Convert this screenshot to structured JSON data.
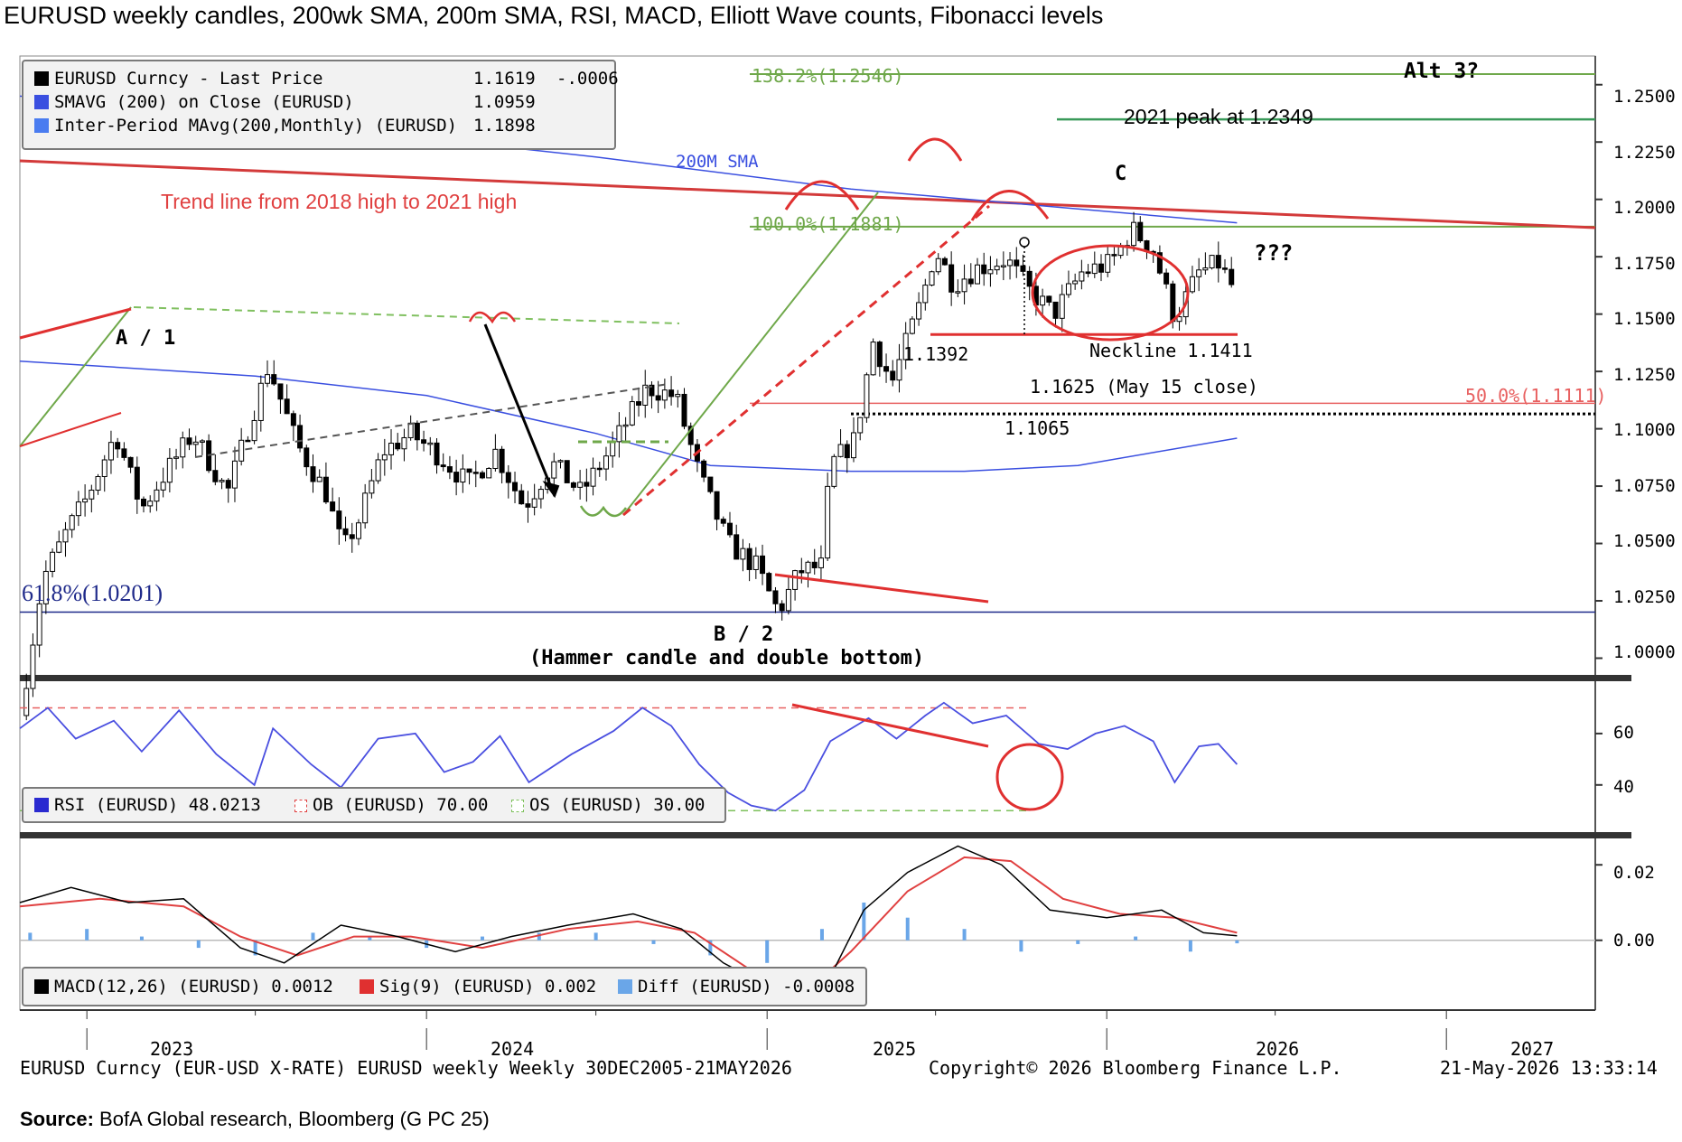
{
  "title": "EURUSD weekly candles, 200wk SMA, 200m SMA, RSI, MACD, Elliott Wave counts, Fibonacci levels",
  "source_label": "Source:",
  "source_text": " BofA Global research, Bloomberg (G PC 25)",
  "footer": {
    "left": "EURUSD Curncy (EUR-USD X-RATE) EURUSD weekly Weekly 30DEC2005-21MAY2026",
    "center": "Copyright© 2026 Bloomberg Finance L.P.",
    "right": "21-May-2026 13:33:14"
  },
  "colors": {
    "price": "#000000",
    "sma200w": "#3a4fe0",
    "sma200m": "#3a4fe0",
    "trend": "#d33a3a",
    "fib_green": "#6fa84a",
    "fib_red": "#e86060",
    "fib_navy": "#1f2a8a",
    "rsi": "#4a4fe0",
    "macd": "#000000",
    "signal": "#e04040",
    "diff": "#6aa6e8"
  },
  "legends": {
    "price": [
      {
        "label": "EURUSD Curncy - Last Price",
        "value": "1.1619",
        "change": "-.0006",
        "color": "#000000"
      },
      {
        "label": "SMAVG (200)  on Close (EURUSD)",
        "value": "1.0959",
        "change": "",
        "color": "#3a4fe0"
      },
      {
        "label": "Inter-Period MAvg(200,Monthly) (EURUSD)",
        "value": "1.1898",
        "change": "",
        "color": "#3a4fe0"
      }
    ],
    "rsi": [
      {
        "label": "RSI (EURUSD) 48.0213",
        "color": "#2a2ad0"
      },
      {
        "label": "OB (EURUSD) 70.00",
        "color": "#e04040"
      },
      {
        "label": "OS (EURUSD) 30.00",
        "color": "#7cc05a"
      }
    ],
    "macd": [
      {
        "label": "MACD(12,26) (EURUSD) 0.0012",
        "color": "#000000"
      },
      {
        "label": "Sig(9) (EURUSD) 0.002",
        "color": "#e03030"
      },
      {
        "label": "Diff (EURUSD) -0.0008",
        "color": "#6aa6e8"
      }
    ]
  },
  "annotations": {
    "a1": "A / 1",
    "b2": "B / 2",
    "hammer": "(Hammer candle and double bottom)",
    "c": "C",
    "alt3": "Alt 3?",
    "qqq": "???",
    "trendline": "Trend line from 2018 high to 2021 high",
    "sma200m": "200M SMA",
    "peak2021": "2021 peak at 1.2349",
    "neckline": "Neckline 1.1411",
    "close": "1.1625 (May 15 close)",
    "low1065": "1.1065",
    "low1392": "1.1392",
    "fib1382": "138.2%(1.2546)",
    "fib100": "100.0%(1.1881)",
    "fib50": "50.0%(1.1111)",
    "fib618": "61.8%(1.0201)"
  },
  "chart_data": [
    {
      "type": "candlestick",
      "title": "EURUSD weekly candles",
      "x_ticks": [
        "2023",
        "2024",
        "2025",
        "2026",
        "2027"
      ],
      "y_ticks": [
        "1.2500",
        "1.2250",
        "1.2000",
        "1.1750",
        "1.1500",
        "1.1250",
        "1.1000",
        "1.0750",
        "1.0500",
        "1.0250",
        "1.0000"
      ],
      "ylim": [
        0.9935,
        1.2625
      ],
      "close_series": [
        {
          "x": "2022-10-21",
          "y": 0.975
        },
        {
          "x": "2022-11-15",
          "y": 1.035
        },
        {
          "x": "2022-12-10",
          "y": 1.055
        },
        {
          "x": "2023-01-01",
          "y": 1.07
        },
        {
          "x": "2023-02-01",
          "y": 1.098
        },
        {
          "x": "2023-03-01",
          "y": 1.065
        },
        {
          "x": "2023-03-25",
          "y": 1.08
        },
        {
          "x": "2023-04-25",
          "y": 1.098
        },
        {
          "x": "2023-06-01",
          "y": 1.072
        },
        {
          "x": "2023-07-15",
          "y": 1.1275
        },
        {
          "x": "2023-08-15",
          "y": 1.093
        },
        {
          "x": "2023-09-15",
          "y": 1.072
        },
        {
          "x": "2023-10-03",
          "y": 1.047
        },
        {
          "x": "2023-10-20",
          "y": 1.06
        },
        {
          "x": "2023-11-15",
          "y": 1.09
        },
        {
          "x": "2023-12-15",
          "y": 1.098
        },
        {
          "x": "2024-01-15",
          "y": 1.088
        },
        {
          "x": "2024-02-15",
          "y": 1.076
        },
        {
          "x": "2024-03-15",
          "y": 1.09
        },
        {
          "x": "2024-04-15",
          "y": 1.066
        },
        {
          "x": "2024-05-15",
          "y": 1.085
        },
        {
          "x": "2024-06-15",
          "y": 1.072
        },
        {
          "x": "2024-07-15",
          "y": 1.09
        },
        {
          "x": "2024-08-25",
          "y": 1.118
        },
        {
          "x": "2024-09-25",
          "y": 1.114
        },
        {
          "x": "2024-10-20",
          "y": 1.08
        },
        {
          "x": "2024-11-20",
          "y": 1.05
        },
        {
          "x": "2024-12-20",
          "y": 1.04
        },
        {
          "x": "2025-01-13",
          "y": 1.0201
        },
        {
          "x": "2025-02-05",
          "y": 1.038
        },
        {
          "x": "2025-02-28",
          "y": 1.04
        },
        {
          "x": "2025-03-10",
          "y": 1.084
        },
        {
          "x": "2025-04-05",
          "y": 1.095
        },
        {
          "x": "2025-04-25",
          "y": 1.138
        },
        {
          "x": "2025-05-15",
          "y": 1.12
        },
        {
          "x": "2025-06-15",
          "y": 1.155
        },
        {
          "x": "2025-07-01",
          "y": 1.178
        },
        {
          "x": "2025-07-20",
          "y": 1.163
        },
        {
          "x": "2025-08-15",
          "y": 1.17
        },
        {
          "x": "2025-09-15",
          "y": 1.174
        },
        {
          "x": "2025-10-10",
          "y": 1.16
        },
        {
          "x": "2025-11-05",
          "y": 1.15
        },
        {
          "x": "2025-12-05",
          "y": 1.168
        },
        {
          "x": "2026-01-05",
          "y": 1.172
        },
        {
          "x": "2026-01-28",
          "y": 1.187
        },
        {
          "x": "2026-02-20",
          "y": 1.178
        },
        {
          "x": "2026-03-15",
          "y": 1.148
        },
        {
          "x": "2026-04-10",
          "y": 1.168
        },
        {
          "x": "2026-05-01",
          "y": 1.172
        },
        {
          "x": "2026-05-15",
          "y": 1.1625
        },
        {
          "x": "2026-05-21",
          "y": 1.1619
        }
      ],
      "sma_200w": [
        {
          "x": "2022-10-21",
          "y": 1.1295
        },
        {
          "x": "2023-07-01",
          "y": 1.123
        },
        {
          "x": "2024-01-01",
          "y": 1.1145
        },
        {
          "x": "2024-07-01",
          "y": 1.098
        },
        {
          "x": "2024-11-01",
          "y": 1.084
        },
        {
          "x": "2025-04-01",
          "y": 1.0815
        },
        {
          "x": "2025-08-01",
          "y": 1.0815
        },
        {
          "x": "2025-12-01",
          "y": 1.084
        },
        {
          "x": "2026-05-21",
          "y": 1.0959
        }
      ],
      "sma_200m": [
        {
          "x": "2022-10-21",
          "y": 1.245
        },
        {
          "x": "2023-07-01",
          "y": 1.2355
        },
        {
          "x": "2024-01-01",
          "y": 1.2265
        },
        {
          "x": "2024-07-01",
          "y": 1.2185
        },
        {
          "x": "2025-04-01",
          "y": 1.2045
        },
        {
          "x": "2025-10-01",
          "y": 1.198
        },
        {
          "x": "2026-05-21",
          "y": 1.1898
        }
      ],
      "fib_levels": [
        {
          "label": "138.2%",
          "value": 1.2546
        },
        {
          "label": "100.0%",
          "value": 1.1881
        },
        {
          "label": "50.0%",
          "value": 1.1111
        },
        {
          "label": "61.8%",
          "value": 1.0201
        }
      ],
      "levels": {
        "peak_2021": 1.2349,
        "neckline": 1.1411,
        "support": 1.1065,
        "low": 1.1392
      },
      "legend": "top-left",
      "grid": false
    },
    {
      "type": "line",
      "title": "RSI",
      "y_ticks": [
        "60",
        "40"
      ],
      "ylim": [
        22,
        80
      ],
      "ob": 70,
      "os": 30,
      "series": [
        {
          "name": "RSI (EURUSD)",
          "values": [
            {
              "x": "2022-10-21",
              "y": 62
            },
            {
              "x": "2022-11-20",
              "y": 70
            },
            {
              "x": "2022-12-20",
              "y": 58
            },
            {
              "x": "2023-01-30",
              "y": 65
            },
            {
              "x": "2023-03-01",
              "y": 53
            },
            {
              "x": "2023-04-10",
              "y": 69
            },
            {
              "x": "2023-05-20",
              "y": 52
            },
            {
              "x": "2023-06-30",
              "y": 40
            },
            {
              "x": "2023-07-20",
              "y": 62
            },
            {
              "x": "2023-08-30",
              "y": 48
            },
            {
              "x": "2023-10-01",
              "y": 39
            },
            {
              "x": "2023-11-10",
              "y": 58
            },
            {
              "x": "2023-12-20",
              "y": 60
            },
            {
              "x": "2024-01-20",
              "y": 45
            },
            {
              "x": "2024-02-20",
              "y": 49
            },
            {
              "x": "2024-03-20",
              "y": 59
            },
            {
              "x": "2024-04-20",
              "y": 41
            },
            {
              "x": "2024-06-05",
              "y": 52
            },
            {
              "x": "2024-07-20",
              "y": 61
            },
            {
              "x": "2024-08-20",
              "y": 70
            },
            {
              "x": "2024-09-20",
              "y": 63
            },
            {
              "x": "2024-10-20",
              "y": 48
            },
            {
              "x": "2024-11-20",
              "y": 37
            },
            {
              "x": "2024-12-15",
              "y": 32
            },
            {
              "x": "2025-01-10",
              "y": 30
            },
            {
              "x": "2025-02-10",
              "y": 38
            },
            {
              "x": "2025-03-10",
              "y": 57
            },
            {
              "x": "2025-04-20",
              "y": 66
            },
            {
              "x": "2025-05-20",
              "y": 58
            },
            {
              "x": "2025-06-20",
              "y": 67
            },
            {
              "x": "2025-07-10",
              "y": 72
            },
            {
              "x": "2025-08-10",
              "y": 64
            },
            {
              "x": "2025-09-15",
              "y": 67
            },
            {
              "x": "2025-10-20",
              "y": 56
            },
            {
              "x": "2025-11-20",
              "y": 54
            },
            {
              "x": "2025-12-20",
              "y": 60
            },
            {
              "x": "2026-01-20",
              "y": 63
            },
            {
              "x": "2026-02-20",
              "y": 57
            },
            {
              "x": "2026-03-15",
              "y": 41
            },
            {
              "x": "2026-04-10",
              "y": 55
            },
            {
              "x": "2026-05-01",
              "y": 56
            },
            {
              "x": "2026-05-21",
              "y": 48
            }
          ]
        }
      ]
    },
    {
      "type": "line",
      "title": "MACD",
      "y_ticks": [
        "0.02",
        "0.00"
      ],
      "ylim": [
        -0.0185,
        0.027
      ],
      "series": [
        {
          "name": "MACD(12,26) (EURUSD)",
          "values": [
            {
              "x": "2022-10-21",
              "y": 0.01
            },
            {
              "x": "2022-12-15",
              "y": 0.014
            },
            {
              "x": "2023-02-15",
              "y": 0.01
            },
            {
              "x": "2023-04-15",
              "y": 0.011
            },
            {
              "x": "2023-06-15",
              "y": -0.002
            },
            {
              "x": "2023-08-01",
              "y": -0.006
            },
            {
              "x": "2023-10-01",
              "y": 0.004
            },
            {
              "x": "2023-12-01",
              "y": 0.001
            },
            {
              "x": "2024-02-01",
              "y": -0.003
            },
            {
              "x": "2024-04-01",
              "y": 0.001
            },
            {
              "x": "2024-06-01",
              "y": 0.004
            },
            {
              "x": "2024-08-10",
              "y": 0.007
            },
            {
              "x": "2024-10-01",
              "y": 0.003
            },
            {
              "x": "2024-11-15",
              "y": -0.006
            },
            {
              "x": "2025-01-15",
              "y": -0.014
            },
            {
              "x": "2025-03-01",
              "y": -0.014
            },
            {
              "x": "2025-04-15",
              "y": 0.008
            },
            {
              "x": "2025-06-01",
              "y": 0.018
            },
            {
              "x": "2025-07-25",
              "y": 0.025
            },
            {
              "x": "2025-09-10",
              "y": 0.02
            },
            {
              "x": "2025-11-01",
              "y": 0.008
            },
            {
              "x": "2026-01-01",
              "y": 0.006
            },
            {
              "x": "2026-03-01",
              "y": 0.008
            },
            {
              "x": "2026-04-15",
              "y": 0.002
            },
            {
              "x": "2026-05-21",
              "y": 0.0012
            }
          ]
        },
        {
          "name": "Sig(9) (EURUSD)",
          "values": [
            {
              "x": "2022-10-21",
              "y": 0.009
            },
            {
              "x": "2023-01-15",
              "y": 0.011
            },
            {
              "x": "2023-04-15",
              "y": 0.009
            },
            {
              "x": "2023-06-15",
              "y": 0.001
            },
            {
              "x": "2023-08-15",
              "y": -0.004
            },
            {
              "x": "2023-10-15",
              "y": 0.001
            },
            {
              "x": "2023-12-15",
              "y": 0.001
            },
            {
              "x": "2024-03-01",
              "y": -0.002
            },
            {
              "x": "2024-06-01",
              "y": 0.003
            },
            {
              "x": "2024-08-15",
              "y": 0.005
            },
            {
              "x": "2024-10-15",
              "y": 0.002
            },
            {
              "x": "2024-12-15",
              "y": -0.008
            },
            {
              "x": "2025-02-15",
              "y": -0.013
            },
            {
              "x": "2025-04-01",
              "y": -0.003
            },
            {
              "x": "2025-06-01",
              "y": 0.013
            },
            {
              "x": "2025-08-01",
              "y": 0.022
            },
            {
              "x": "2025-09-20",
              "y": 0.021
            },
            {
              "x": "2025-11-15",
              "y": 0.011
            },
            {
              "x": "2026-01-15",
              "y": 0.007
            },
            {
              "x": "2026-03-15",
              "y": 0.006
            },
            {
              "x": "2026-05-21",
              "y": 0.002
            }
          ]
        },
        {
          "name": "Diff (EURUSD)",
          "values": [
            {
              "x": "2022-11-01",
              "y": 0.002
            },
            {
              "x": "2023-01-01",
              "y": 0.003
            },
            {
              "x": "2023-03-01",
              "y": 0.001
            },
            {
              "x": "2023-05-01",
              "y": -0.002
            },
            {
              "x": "2023-07-01",
              "y": -0.004
            },
            {
              "x": "2023-09-01",
              "y": 0.002
            },
            {
              "x": "2023-11-01",
              "y": 0.001
            },
            {
              "x": "2024-01-01",
              "y": -0.002
            },
            {
              "x": "2024-03-01",
              "y": 0.001
            },
            {
              "x": "2024-05-01",
              "y": 0.002
            },
            {
              "x": "2024-07-01",
              "y": 0.002
            },
            {
              "x": "2024-09-01",
              "y": -0.001
            },
            {
              "x": "2024-11-01",
              "y": -0.004
            },
            {
              "x": "2025-01-01",
              "y": -0.006
            },
            {
              "x": "2025-03-01",
              "y": 0.003
            },
            {
              "x": "2025-04-15",
              "y": 0.01
            },
            {
              "x": "2025-06-01",
              "y": 0.006
            },
            {
              "x": "2025-08-01",
              "y": 0.003
            },
            {
              "x": "2025-10-01",
              "y": -0.003
            },
            {
              "x": "2025-12-01",
              "y": -0.001
            },
            {
              "x": "2026-02-01",
              "y": 0.001
            },
            {
              "x": "2026-04-01",
              "y": -0.003
            },
            {
              "x": "2026-05-21",
              "y": -0.0008
            }
          ]
        }
      ]
    }
  ]
}
